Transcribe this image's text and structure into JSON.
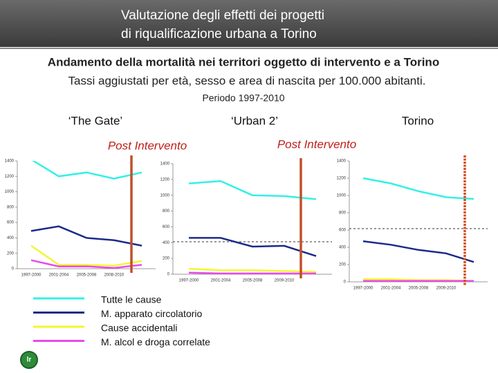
{
  "header": {
    "title_lines": [
      "Valutazione degli effetti dei progetti",
      "di riqualificazione urbana a Torino"
    ]
  },
  "subtitle_lines": [
    "Andamento della mortalità nei territori oggetto di intervento e a Torino",
    "Tassi aggiustati per età, sesso e area di nascita per 100.000 abitanti.",
    "Periodo 1997-2010"
  ],
  "legend": [
    {
      "name": "Tutte le cause",
      "color": "#33f0e6"
    },
    {
      "name": "M. apparato circolatorio",
      "color": "#1a2a8a"
    },
    {
      "name": "Cause accidentali",
      "color": "#f5f532"
    },
    {
      "name": "M. alcol e droga correlate",
      "color": "#e84ae8"
    }
  ],
  "chart_data": [
    {
      "type": "line",
      "title": "‘The Gate’",
      "subtitle": "Post Intervento",
      "categories": [
        "1997-2000",
        "2001-2004",
        "2005-2008",
        "2008-2010",
        null
      ],
      "ylim": [
        0,
        1400
      ],
      "yticks": [
        0,
        200,
        400,
        600,
        800,
        1000,
        1200,
        1400
      ],
      "series": [
        {
          "values": [
            1420,
            1200,
            1250,
            1170,
            1250
          ]
        },
        {
          "values": [
            490,
            550,
            400,
            370,
            300
          ]
        },
        {
          "values": [
            300,
            50,
            50,
            40,
            100
          ]
        },
        {
          "values": [
            110,
            30,
            30,
            10,
            50
          ]
        }
      ]
    },
    {
      "type": "line",
      "title": "‘Urban 2’",
      "subtitle": "Post Intervento",
      "categories": [
        "1997-2000",
        "2001-2004",
        "2005-2008",
        "2009-2010",
        null
      ],
      "ylim": [
        0,
        1400
      ],
      "yticks": [
        0,
        200,
        400,
        600,
        800,
        1000,
        1200,
        1400
      ],
      "series": [
        {
          "values": [
            1150,
            1180,
            1000,
            990,
            950
          ]
        },
        {
          "values": [
            460,
            460,
            350,
            360,
            230
          ]
        },
        {
          "values": [
            70,
            50,
            50,
            40,
            30
          ]
        },
        {
          "values": [
            20,
            10,
            10,
            10,
            10
          ]
        }
      ]
    },
    {
      "type": "line",
      "title": "Torino",
      "categories": [
        "1997-2000",
        "2001-2004",
        "2005-2008",
        "2009-2010",
        null
      ],
      "ylim": [
        0,
        1400
      ],
      "yticks": [
        0,
        200,
        400,
        600,
        800,
        1000,
        1200,
        1400
      ],
      "series": [
        {
          "values": [
            1200,
            1140,
            1050,
            980,
            960
          ]
        },
        {
          "values": [
            470,
            430,
            370,
            330,
            230
          ]
        },
        {
          "values": [
            30,
            30,
            20,
            20,
            10
          ]
        },
        {
          "values": [
            10,
            10,
            10,
            10,
            10
          ]
        }
      ]
    }
  ]
}
